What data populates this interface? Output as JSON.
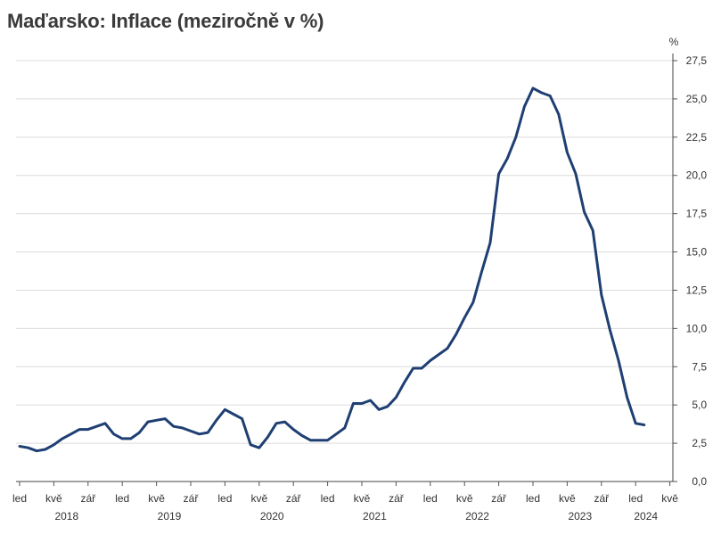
{
  "chart_data": {
    "type": "line",
    "title": "Maďarsko: Inflace (meziročně v %)",
    "unit": "%",
    "ylim": [
      0,
      27.5
    ],
    "y_ticks": [
      "0,0",
      "2,5",
      "5,0",
      "7,5",
      "10,0",
      "12,5",
      "15,0",
      "17,5",
      "20,0",
      "22,5",
      "25,0",
      "27,5"
    ],
    "grid": true,
    "month_tick_labels": [
      "led",
      "kvě",
      "zář",
      "led",
      "kvě",
      "zář",
      "led",
      "kvě",
      "zář",
      "led",
      "kvě",
      "zář",
      "led",
      "kvě",
      "zář",
      "led",
      "kvě",
      "zář",
      "led",
      "kvě"
    ],
    "year_labels": [
      "2018",
      "2019",
      "2020",
      "2021",
      "2022",
      "2023",
      "2024"
    ],
    "x_start": "2018-01",
    "series": [
      {
        "color": "#1f3f73",
        "values": [
          2.3,
          2.2,
          2.0,
          2.1,
          2.4,
          2.8,
          3.1,
          3.4,
          3.4,
          3.6,
          3.8,
          3.1,
          2.8,
          2.8,
          3.2,
          3.9,
          4.0,
          4.1,
          3.6,
          3.5,
          3.3,
          3.1,
          3.2,
          4.0,
          4.7,
          4.4,
          4.1,
          2.4,
          2.2,
          2.9,
          3.8,
          3.9,
          3.4,
          3.0,
          2.7,
          2.7,
          2.7,
          3.1,
          3.5,
          5.1,
          5.1,
          5.3,
          4.7,
          4.9,
          5.5,
          6.5,
          7.4,
          7.4,
          7.9,
          8.3,
          8.7,
          9.6,
          10.7,
          11.7,
          13.7,
          15.6,
          20.1,
          21.1,
          22.5,
          24.5,
          25.7,
          25.4,
          25.2,
          24.0,
          21.5,
          20.1,
          17.6,
          16.4,
          12.2,
          9.9,
          7.9,
          5.5,
          3.8,
          3.7
        ]
      }
    ]
  }
}
